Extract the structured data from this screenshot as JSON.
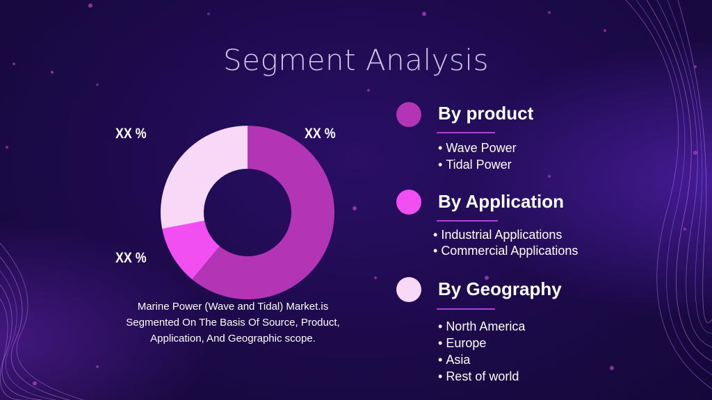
{
  "slide": {
    "title": "Segment Analysis",
    "caption": "Marine Power (Wave and Tidal) Market.is Segmented On The Basis Of Source, Product, Application, And Geographic scope."
  },
  "chart_data": {
    "type": "pie",
    "style": "donut",
    "data_labels": [
      "XX %",
      "XX %",
      "XX %"
    ],
    "slices": [
      {
        "value": 61,
        "color": "#b334b5",
        "label": "XX %"
      },
      {
        "value": 11,
        "color": "#f24ff2",
        "label": "XX %"
      },
      {
        "value": 28,
        "color": "#f7d9f7",
        "label": "XX %"
      }
    ]
  },
  "segments": [
    {
      "title": "By product",
      "dot_color": "#b334b5",
      "items": [
        "Wave Power",
        "Tidal Power"
      ]
    },
    {
      "title": "By Application",
      "dot_color": "#f24ff2",
      "items": [
        "Industrial Applications",
        "Commercial Applications"
      ]
    },
    {
      "title": "By Geography",
      "dot_color": "#f7d9f7",
      "items": [
        "North America",
        "Europe",
        "Asia",
        "Rest of world"
      ]
    }
  ],
  "colors": {
    "background": "#1c0a4a",
    "accent_line": "#b340d9",
    "title": "#cfc2ea"
  }
}
